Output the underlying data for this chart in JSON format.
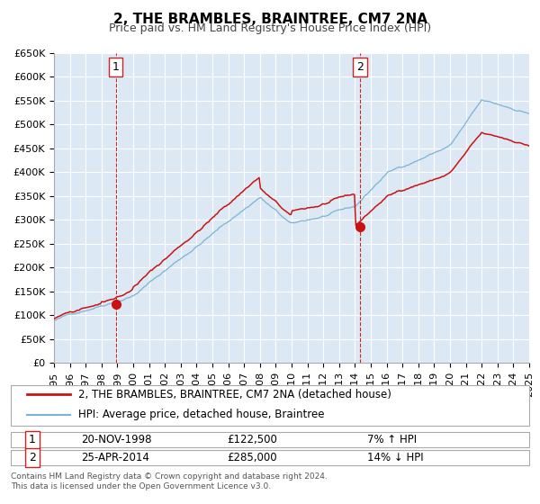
{
  "title": "2, THE BRAMBLES, BRAINTREE, CM7 2NA",
  "subtitle": "Price paid vs. HM Land Registry's House Price Index (HPI)",
  "background_color": "#dce9f5",
  "plot_bg_color": "#dce9f5",
  "grid_color": "#ffffff",
  "hpi_color": "#7ab3d4",
  "price_color": "#cc1111",
  "vline_color": "#cc2222",
  "ylim": [
    0,
    650000
  ],
  "yticks": [
    0,
    50000,
    100000,
    150000,
    200000,
    250000,
    300000,
    350000,
    400000,
    450000,
    500000,
    550000,
    600000,
    650000
  ],
  "ytick_labels": [
    "£0",
    "£50K",
    "£100K",
    "£150K",
    "£200K",
    "£250K",
    "£300K",
    "£350K",
    "£400K",
    "£450K",
    "£500K",
    "£550K",
    "£600K",
    "£650K"
  ],
  "sale1_year": 1998.9,
  "sale1_price": 122500,
  "sale1_label": "1",
  "sale1_date": "20-NOV-1998",
  "sale1_price_str": "£122,500",
  "sale1_pct": "7% ↑ HPI",
  "sale2_year": 2014.32,
  "sale2_price": 285000,
  "sale2_label": "2",
  "sale2_date": "25-APR-2014",
  "sale2_price_str": "£285,000",
  "sale2_pct": "14% ↓ HPI",
  "legend_line1": "2, THE BRAMBLES, BRAINTREE, CM7 2NA (detached house)",
  "legend_line2": "HPI: Average price, detached house, Braintree",
  "footnote1": "Contains HM Land Registry data © Crown copyright and database right 2024.",
  "footnote2": "This data is licensed under the Open Government Licence v3.0.",
  "title_fontsize": 11,
  "subtitle_fontsize": 9,
  "tick_fontsize": 8,
  "legend_fontsize": 8.5,
  "annotation_fontsize": 8.5
}
